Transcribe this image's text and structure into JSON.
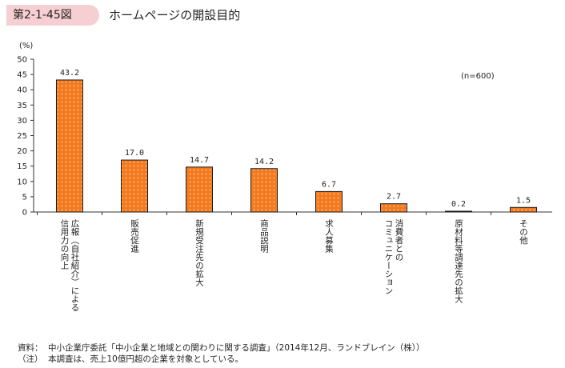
{
  "header": {
    "figure_number": "第2-1-45図",
    "title": "ホームページの開設目的"
  },
  "chart_data": {
    "type": "bar",
    "ylabel": "(%)",
    "ylim": [
      0,
      50
    ],
    "ytick_step": 5,
    "annotation": "(n=600)",
    "categories": [
      "広報（自社紹介）による信用力の向上",
      "販売促進",
      "新規受注先の拡大",
      "商品説明",
      "求人募集",
      "消費者とのコミュニケーション",
      "原材料等調達先の拡大",
      "その他"
    ],
    "category_columns": [
      [
        "広報（自社紹介）による",
        "信用力の向上"
      ],
      [
        "販売促進"
      ],
      [
        "新規受注先の拡大"
      ],
      [
        "商品説明"
      ],
      [
        "求人募集"
      ],
      [
        "消費者との",
        "コミュニケーション"
      ],
      [
        "原材料等調達先の拡大"
      ],
      [
        "その他"
      ]
    ],
    "values": [
      43.2,
      17.0,
      14.7,
      14.2,
      6.7,
      2.7,
      0.2,
      1.5
    ],
    "value_labels": [
      "43.2",
      "17.0",
      "14.7",
      "14.2",
      "6.7",
      "2.7",
      "0.2",
      "1.5"
    ],
    "bar_color": "#f47a1f",
    "bar_dot_color": "#ffe2c2",
    "bar_edge_color": "#1a1a1a"
  },
  "notes": {
    "source_label": "資料：",
    "source_text": "中小企業庁委託「中小企業と地域との関わりに関する調査」（2014年12月、ランドブレイン（株））",
    "note_label": "（注）",
    "note_text": "本調査は、売上10億円超の企業を対象としている。"
  }
}
